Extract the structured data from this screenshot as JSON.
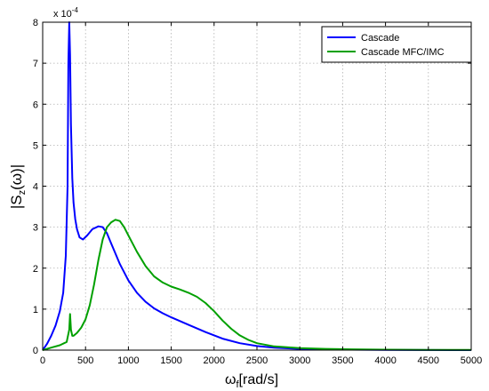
{
  "chart_data": {
    "type": "line",
    "xlabel": "ω_f [rad/s]",
    "xlabel_main": "ω",
    "xlabel_sub": "f",
    "xlabel_rest": "[rad/s]",
    "ylabel": "|S_z(ω)|",
    "ylabel_pre": "|S",
    "ylabel_sub": "z",
    "ylabel_post": "(ω)|",
    "y_multiplier": "x 10",
    "y_multiplier_exp": "-4",
    "xlim": [
      0,
      5000
    ],
    "ylim": [
      0,
      8
    ],
    "y_scale_factor": 0.0001,
    "grid": true,
    "legend_position": "top-right",
    "x_ticks": [
      "0",
      "500",
      "1000",
      "1500",
      "2000",
      "2500",
      "3000",
      "3500",
      "4000",
      "4500",
      "5000"
    ],
    "y_ticks": [
      "0",
      "1",
      "2",
      "3",
      "4",
      "5",
      "6",
      "7",
      "8"
    ],
    "series": [
      {
        "name": "Cascade",
        "color": "#0000ff",
        "x": [
          0,
          50,
          100,
          150,
          200,
          240,
          270,
          290,
          300,
          310,
          320,
          330,
          345,
          360,
          380,
          400,
          430,
          470,
          520,
          580,
          650,
          700,
          750,
          800,
          900,
          1000,
          1100,
          1200,
          1300,
          1400,
          1500,
          1700,
          1900,
          2100,
          2300,
          2500,
          2700,
          3000,
          3300,
          3600,
          4000,
          4500,
          5000
        ],
        "y": [
          0,
          0.15,
          0.35,
          0.6,
          0.95,
          1.4,
          2.3,
          4.0,
          7.0,
          8.0,
          7.2,
          5.5,
          4.2,
          3.6,
          3.2,
          2.95,
          2.75,
          2.7,
          2.8,
          2.95,
          3.02,
          3.0,
          2.85,
          2.6,
          2.1,
          1.7,
          1.4,
          1.18,
          1.02,
          0.9,
          0.8,
          0.62,
          0.44,
          0.28,
          0.17,
          0.1,
          0.06,
          0.03,
          0.02,
          0.01,
          0.005,
          0.002,
          0.001
        ]
      },
      {
        "name": "Cascade MFC/IMC",
        "color": "#00a000",
        "x": [
          0,
          100,
          200,
          280,
          310,
          320,
          330,
          345,
          360,
          400,
          450,
          500,
          550,
          600,
          650,
          700,
          750,
          800,
          850,
          900,
          950,
          1000,
          1100,
          1200,
          1300,
          1400,
          1500,
          1600,
          1700,
          1800,
          1900,
          2000,
          2100,
          2200,
          2300,
          2400,
          2500,
          2700,
          3000,
          3300,
          3600,
          4000,
          4500,
          5000
        ],
        "y": [
          0,
          0.06,
          0.12,
          0.2,
          0.5,
          0.88,
          0.5,
          0.35,
          0.35,
          0.42,
          0.55,
          0.75,
          1.1,
          1.6,
          2.2,
          2.7,
          3.0,
          3.12,
          3.18,
          3.15,
          3.0,
          2.8,
          2.4,
          2.05,
          1.8,
          1.65,
          1.55,
          1.48,
          1.4,
          1.3,
          1.15,
          0.95,
          0.72,
          0.52,
          0.36,
          0.25,
          0.17,
          0.09,
          0.05,
          0.03,
          0.02,
          0.01,
          0.006,
          0.004
        ]
      }
    ]
  }
}
